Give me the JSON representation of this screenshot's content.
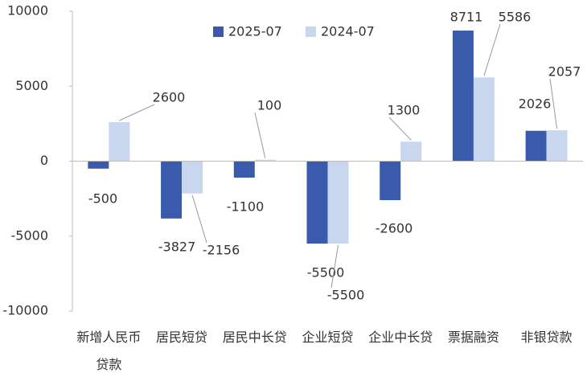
{
  "chart_data": {
    "type": "bar",
    "categories": [
      "新增人民币贷款",
      "居民短贷",
      "居民中长贷",
      "企业短贷",
      "企业中长贷",
      "票据融资",
      "非银贷款"
    ],
    "series": [
      {
        "name": "2025-07",
        "color": "#3a5bab",
        "values": [
          -500,
          -3827,
          -1100,
          -5500,
          -2600,
          8711,
          2026
        ]
      },
      {
        "name": "2024-07",
        "color": "#c9d7ee",
        "values": [
          2600,
          -2156,
          100,
          -5500,
          1300,
          5586,
          2057
        ]
      }
    ],
    "ylim": [
      -10000,
      10000
    ],
    "yticks": [
      -10000,
      -5000,
      0,
      5000,
      10000
    ]
  }
}
